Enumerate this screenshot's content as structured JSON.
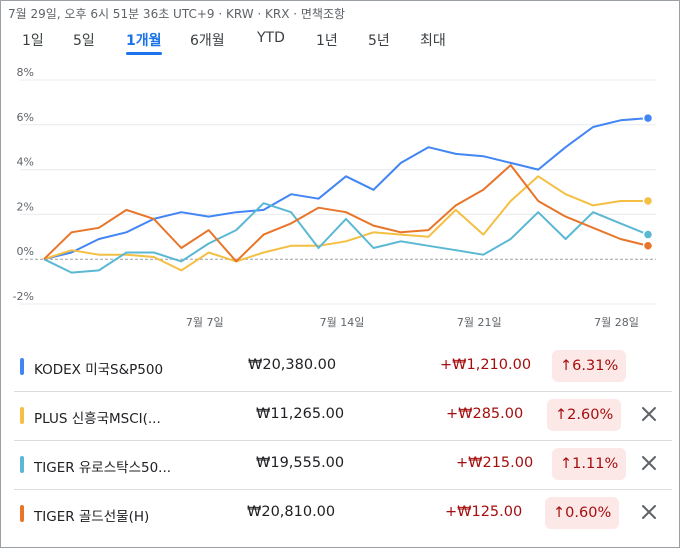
{
  "header": {
    "text": "7월 29일, 오후 6시 51분 36초 UTC+9 · KRW · KRX · 면책조항"
  },
  "tabs": [
    {
      "label": "1일",
      "active": false
    },
    {
      "label": "5일",
      "active": false
    },
    {
      "label": "1개월",
      "active": true
    },
    {
      "label": "6개월",
      "active": false
    },
    {
      "label": "YTD",
      "active": false
    },
    {
      "label": "1년",
      "active": false
    },
    {
      "label": "5년",
      "active": false
    },
    {
      "label": "최대",
      "active": false
    }
  ],
  "chart_data": {
    "type": "line",
    "y_ticks": [
      "8%",
      "6%",
      "4%",
      "2%",
      "0%",
      "-2%"
    ],
    "ylim": [
      -2,
      8
    ],
    "x_ticks": [
      {
        "label": "7월 7일",
        "index": 6
      },
      {
        "label": "7월 14일",
        "index": 11
      },
      {
        "label": "7월 21일",
        "index": 16
      },
      {
        "label": "7월 28일",
        "index": 21
      }
    ],
    "n_points": 23,
    "series": [
      {
        "color": "#4285f4",
        "values": [
          0,
          0.3,
          0.9,
          1.2,
          1.8,
          2.1,
          1.9,
          2.1,
          2.2,
          2.9,
          2.7,
          3.7,
          3.1,
          4.3,
          5.0,
          4.7,
          4.6,
          4.3,
          4.0,
          5.0,
          5.9,
          6.2,
          6.3
        ]
      },
      {
        "color": "#f4bf42",
        "values": [
          0,
          0.4,
          0.2,
          0.2,
          0.1,
          -0.5,
          0.3,
          -0.1,
          0.3,
          0.6,
          0.6,
          0.8,
          1.2,
          1.1,
          1.0,
          2.2,
          1.1,
          2.6,
          3.7,
          2.9,
          2.4,
          2.6,
          2.6
        ]
      },
      {
        "color": "#5ab8d4",
        "values": [
          0,
          -0.6,
          -0.5,
          0.3,
          0.3,
          -0.1,
          0.7,
          1.3,
          2.5,
          2.1,
          0.5,
          1.8,
          0.5,
          0.8,
          0.6,
          0.4,
          0.2,
          0.9,
          2.1,
          0.9,
          2.1,
          1.6,
          1.1
        ]
      },
      {
        "color": "#e8752a",
        "values": [
          0,
          1.2,
          1.4,
          2.2,
          1.8,
          0.5,
          1.3,
          -0.1,
          1.1,
          1.6,
          2.3,
          2.1,
          1.5,
          1.2,
          1.3,
          2.4,
          3.1,
          4.2,
          2.6,
          1.9,
          1.4,
          0.9,
          0.6
        ]
      }
    ]
  },
  "rows": [
    {
      "color": "#4285f4",
      "name": "KODEX 미국S&P500",
      "price": "₩20,380.00",
      "change": "+₩1,210.00",
      "pct": "6.31%",
      "closable": false
    },
    {
      "color": "#f4bf42",
      "name": "PLUS 신흥국MSCI(...",
      "price": "₩11,265.00",
      "change": "+₩285.00",
      "pct": "2.60%",
      "closable": true
    },
    {
      "color": "#5ab8d4",
      "name": "TIGER 유로스탁스50...",
      "price": "₩19,555.00",
      "change": "+₩215.00",
      "pct": "1.11%",
      "closable": true
    },
    {
      "color": "#e8752a",
      "name": "TIGER 골드선물(H)",
      "price": "₩20,810.00",
      "change": "+₩125.00",
      "pct": "0.60%",
      "closable": true
    }
  ]
}
